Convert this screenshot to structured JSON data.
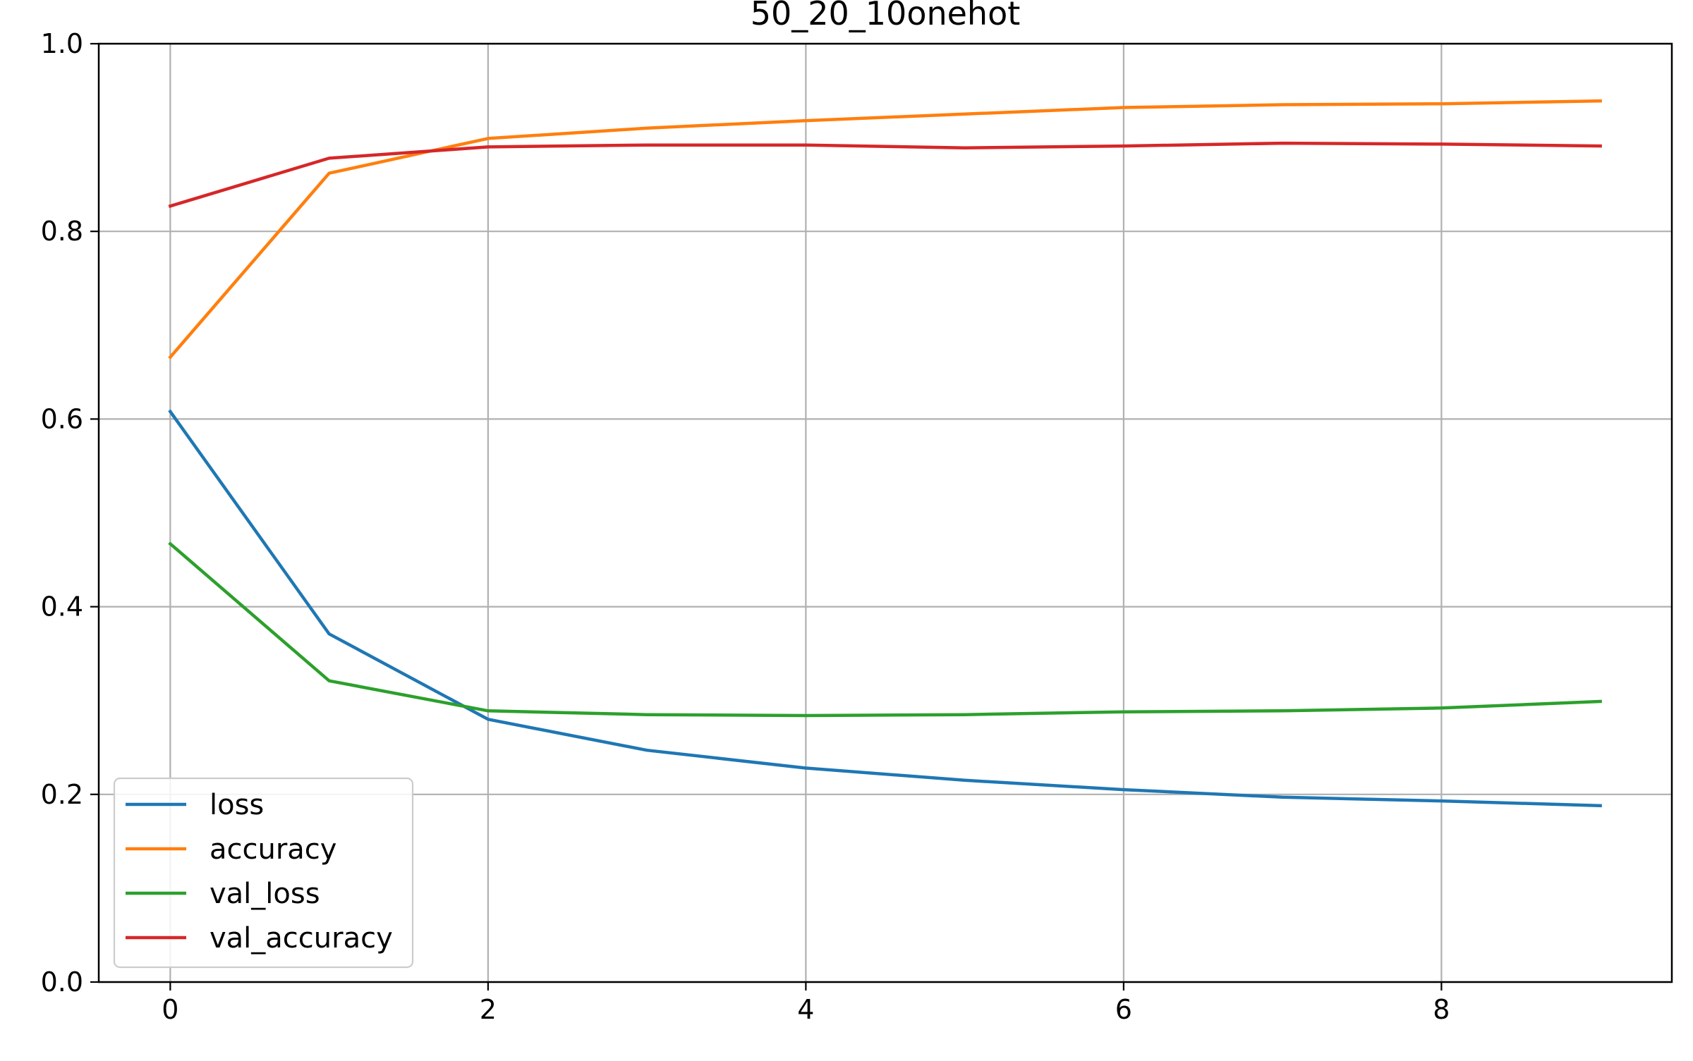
{
  "chart_data": {
    "type": "line",
    "title": "50_20_10onehot",
    "xlabel": "",
    "ylabel": "",
    "x": [
      0,
      1,
      2,
      3,
      4,
      5,
      6,
      7,
      8,
      9
    ],
    "xlim": [
      -0.45,
      9.45
    ],
    "ylim": [
      0.0,
      1.0
    ],
    "xticks": [
      0,
      2,
      4,
      6,
      8
    ],
    "xtick_labels": [
      "0",
      "2",
      "4",
      "6",
      "8"
    ],
    "yticks": [
      0.0,
      0.2,
      0.4,
      0.6,
      0.8,
      1.0
    ],
    "ytick_labels": [
      "0.0",
      "0.2",
      "0.4",
      "0.6",
      "0.8",
      "1.0"
    ],
    "grid": true,
    "legend_position": "lower-left",
    "series": [
      {
        "name": "loss",
        "color": "#1f77b4",
        "values": [
          0.608,
          0.371,
          0.28,
          0.247,
          0.228,
          0.215,
          0.205,
          0.197,
          0.193,
          0.188
        ]
      },
      {
        "name": "accuracy",
        "color": "#ff7f0e",
        "values": [
          0.666,
          0.862,
          0.899,
          0.91,
          0.918,
          0.925,
          0.932,
          0.935,
          0.936,
          0.939
        ]
      },
      {
        "name": "val_loss",
        "color": "#2ca02c",
        "values": [
          0.467,
          0.321,
          0.289,
          0.285,
          0.284,
          0.285,
          0.288,
          0.289,
          0.292,
          0.299
        ]
      },
      {
        "name": "val_accuracy",
        "color": "#d62728",
        "values": [
          0.827,
          0.878,
          0.89,
          0.892,
          0.892,
          0.889,
          0.891,
          0.894,
          0.893,
          0.891
        ]
      }
    ]
  }
}
